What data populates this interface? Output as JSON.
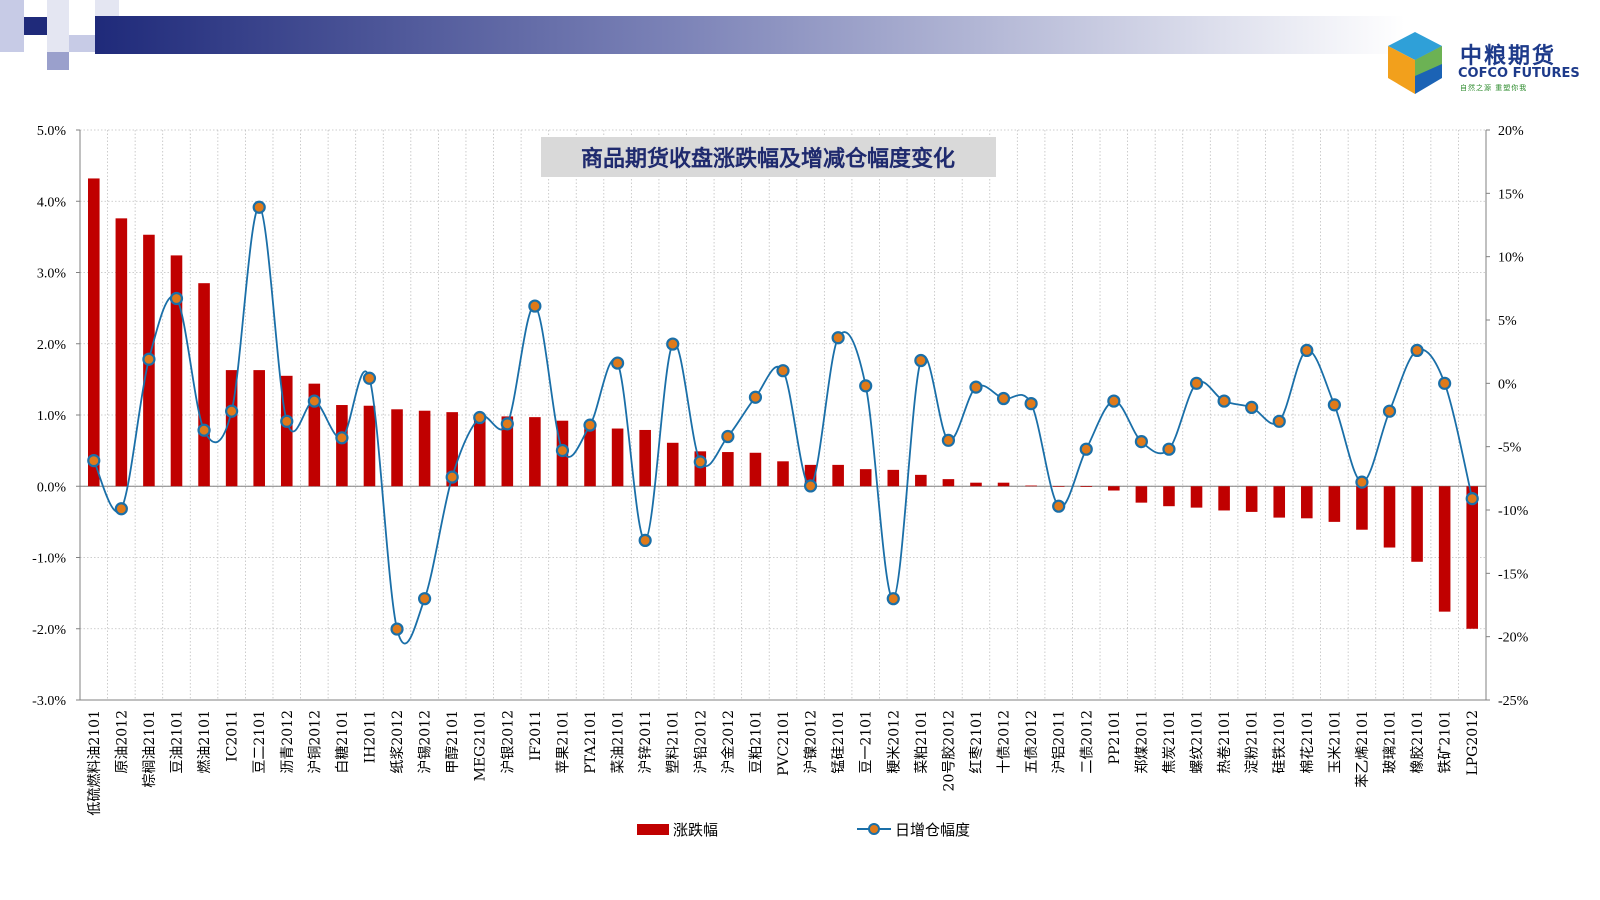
{
  "brand": {
    "name_cn": "中粮期货",
    "name_en": "COFCO FUTURES",
    "tagline": "自然之源 重塑你我"
  },
  "colors": {
    "bar": "#c00000",
    "line": "#1a6fa8",
    "marker_fill": "#e07a1a",
    "header_dark": "#1f2a7a",
    "title_bg": "#d9d9d9",
    "title_text": "#1f2a6e"
  },
  "chart_data": {
    "type": "bar",
    "title": "商品期货收盘涨跌幅及增减仓幅度变化",
    "categories": [
      "低硫燃料油2101",
      "原油2012",
      "棕榈油2101",
      "豆油2101",
      "燃油2101",
      "IC2011",
      "豆二2101",
      "沥青2012",
      "沪铜2012",
      "白糖2101",
      "IH2011",
      "纸浆2012",
      "沪锡2012",
      "甲醇2101",
      "MEG2101",
      "沪银2012",
      "IF2011",
      "苹果2101",
      "PTA2101",
      "菜油2101",
      "沪锌2011",
      "塑料2101",
      "沪铅2012",
      "沪金2012",
      "豆粕2101",
      "PVC2101",
      "沪镍2012",
      "锰硅2101",
      "豆一2101",
      "粳米2012",
      "菜粕2101",
      "20号胶2012",
      "红枣2101",
      "十债2012",
      "五债2012",
      "沪铝2011",
      "二债2012",
      "PP2101",
      "郑煤2011",
      "焦炭2101",
      "螺纹2101",
      "热卷2101",
      "淀粉2101",
      "硅铁2101",
      "棉花2101",
      "玉米2101",
      "苯乙烯2101",
      "玻璃2101",
      "橡胶2101",
      "铁矿2101",
      "LPG2012"
    ],
    "series": [
      {
        "name": "涨跌幅",
        "type": "bar",
        "axis": "left",
        "values": [
          4.32,
          3.76,
          3.53,
          3.24,
          2.85,
          1.63,
          1.63,
          1.55,
          1.44,
          1.14,
          1.13,
          1.08,
          1.06,
          1.04,
          0.99,
          0.98,
          0.97,
          0.92,
          0.9,
          0.81,
          0.79,
          0.61,
          0.49,
          0.48,
          0.47,
          0.35,
          0.3,
          0.3,
          0.24,
          0.23,
          0.16,
          0.1,
          0.05,
          0.05,
          0.01,
          0.0,
          -0.01,
          -0.06,
          -0.23,
          -0.28,
          -0.3,
          -0.34,
          -0.36,
          -0.44,
          -0.45,
          -0.5,
          -0.61,
          -0.86,
          -1.06,
          -1.76,
          -2.0
        ]
      },
      {
        "name": "日增仓幅度",
        "type": "line",
        "axis": "right",
        "values": [
          -6.1,
          -9.9,
          1.9,
          6.7,
          -3.7,
          -2.2,
          13.9,
          -3.0,
          -1.4,
          -4.3,
          0.4,
          -19.4,
          -17.0,
          -7.4,
          -2.7,
          -3.2,
          6.1,
          -5.3,
          -3.3,
          1.6,
          -12.4,
          3.1,
          -6.2,
          -4.2,
          -1.1,
          1.0,
          -8.1,
          3.6,
          -0.2,
          -17.0,
          1.8,
          -4.5,
          -0.3,
          -1.2,
          -1.6,
          -9.7,
          -5.2,
          -1.4,
          -4.6,
          -5.2,
          0.0,
          -1.4,
          -1.9,
          -3.0,
          2.6,
          -1.7,
          -7.8,
          -2.2,
          2.6,
          0.0,
          -9.1
        ]
      }
    ],
    "y_left": {
      "min": -3.0,
      "max": 5.0,
      "step": 1.0,
      "tick_labels": [
        "-3.0%",
        "-2.0%",
        "-1.0%",
        "0.0%",
        "1.0%",
        "2.0%",
        "3.0%",
        "4.0%",
        "5.0%"
      ]
    },
    "y_right": {
      "min": -25,
      "max": 20,
      "step": 5,
      "tick_labels": [
        "-25%",
        "-20%",
        "-15%",
        "-10%",
        "-5%",
        "0%",
        "5%",
        "10%",
        "15%",
        "20%"
      ]
    },
    "grid": true,
    "legend_position": "bottom"
  }
}
